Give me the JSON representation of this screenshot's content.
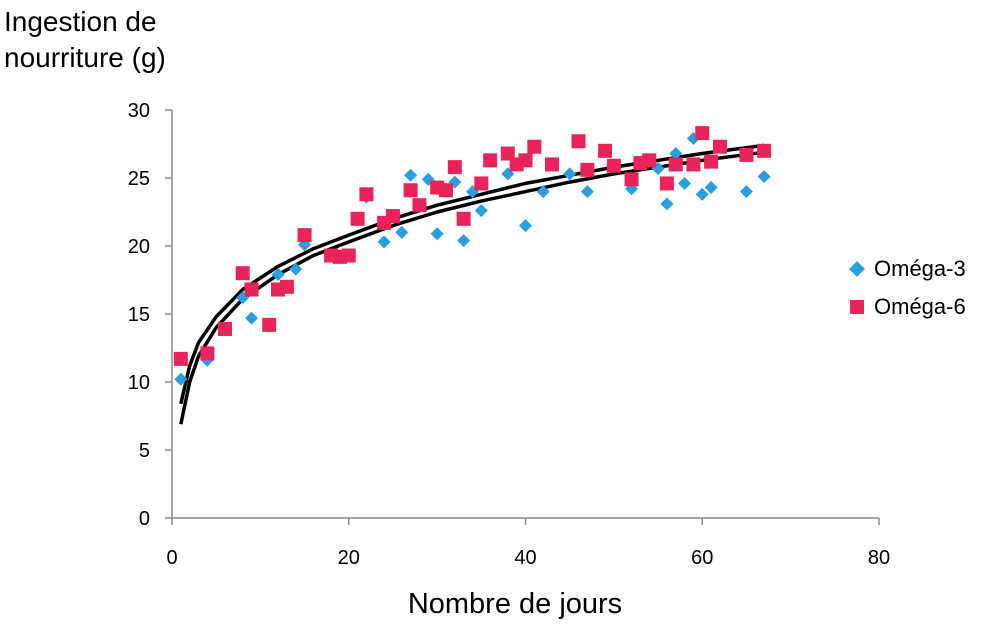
{
  "chart_data": {
    "type": "scatter",
    "title": "",
    "ylabel_lines": [
      "Ingestion de",
      "nourriture (g)"
    ],
    "xlabel": "Nombre de jours",
    "xlim": [
      0,
      80
    ],
    "ylim": [
      0,
      30
    ],
    "x_ticks": [
      0,
      20,
      40,
      60,
      80
    ],
    "y_ticks": [
      0,
      5,
      10,
      15,
      20,
      25,
      30
    ],
    "x_tick_labels": [
      "0",
      "20",
      "40",
      "60",
      "80"
    ],
    "y_tick_labels": [
      "0",
      "5",
      "10",
      "15",
      "20",
      "25",
      "30"
    ],
    "grid": false,
    "legend_position": "right",
    "series": [
      {
        "name": "Oméga-3",
        "marker": "diamond",
        "color": "#2a9fe0",
        "points": [
          [
            1,
            10.2
          ],
          [
            4,
            11.6
          ],
          [
            8,
            16.2
          ],
          [
            9,
            14.7
          ],
          [
            12,
            17.9
          ],
          [
            14,
            18.3
          ],
          [
            15,
            20.1
          ],
          [
            20,
            19.3
          ],
          [
            22,
            23.6
          ],
          [
            24,
            20.3
          ],
          [
            26,
            21.0
          ],
          [
            27,
            25.2
          ],
          [
            29,
            24.9
          ],
          [
            30,
            20.9
          ],
          [
            32,
            24.7
          ],
          [
            33,
            20.4
          ],
          [
            34,
            24.0
          ],
          [
            35,
            22.6
          ],
          [
            38,
            25.3
          ],
          [
            40,
            21.5
          ],
          [
            42,
            24.0
          ],
          [
            45,
            25.3
          ],
          [
            47,
            24.0
          ],
          [
            52,
            24.2
          ],
          [
            55,
            25.7
          ],
          [
            56,
            23.1
          ],
          [
            57,
            26.8
          ],
          [
            58,
            24.6
          ],
          [
            59,
            27.9
          ],
          [
            60,
            23.8
          ],
          [
            61,
            24.3
          ],
          [
            65,
            24.0
          ],
          [
            67,
            25.1
          ]
        ],
        "trend": [
          [
            1,
            6.9
          ],
          [
            2,
            10.0
          ],
          [
            3,
            11.9
          ],
          [
            5,
            14.0
          ],
          [
            8,
            16.1
          ],
          [
            12,
            17.9
          ],
          [
            16,
            19.3
          ],
          [
            20,
            20.3
          ],
          [
            25,
            21.5
          ],
          [
            30,
            22.5
          ],
          [
            35,
            23.3
          ],
          [
            40,
            24.0
          ],
          [
            45,
            24.7
          ],
          [
            50,
            25.3
          ],
          [
            55,
            25.8
          ],
          [
            60,
            26.3
          ],
          [
            67,
            26.9
          ]
        ]
      },
      {
        "name": "Oméga-6",
        "marker": "square",
        "color": "#e8245a",
        "points": [
          [
            1,
            11.7
          ],
          [
            4,
            12.1
          ],
          [
            6,
            13.9
          ],
          [
            8,
            18.0
          ],
          [
            9,
            16.8
          ],
          [
            11,
            14.2
          ],
          [
            12,
            16.8
          ],
          [
            13,
            17.0
          ],
          [
            15,
            20.8
          ],
          [
            18,
            19.3
          ],
          [
            19,
            19.2
          ],
          [
            20,
            19.3
          ],
          [
            21,
            22.0
          ],
          [
            22,
            23.8
          ],
          [
            24,
            21.7
          ],
          [
            25,
            22.2
          ],
          [
            27,
            24.1
          ],
          [
            28,
            23.0
          ],
          [
            30,
            24.3
          ],
          [
            31,
            24.1
          ],
          [
            32,
            25.8
          ],
          [
            33,
            22.0
          ],
          [
            35,
            24.6
          ],
          [
            36,
            26.3
          ],
          [
            38,
            26.8
          ],
          [
            39,
            26.0
          ],
          [
            40,
            26.3
          ],
          [
            41,
            27.3
          ],
          [
            43,
            26.0
          ],
          [
            46,
            27.7
          ],
          [
            47,
            25.6
          ],
          [
            49,
            27.0
          ],
          [
            50,
            25.9
          ],
          [
            52,
            24.9
          ],
          [
            53,
            26.1
          ],
          [
            54,
            26.3
          ],
          [
            56,
            24.6
          ],
          [
            57,
            26.0
          ],
          [
            59,
            26.0
          ],
          [
            60,
            28.3
          ],
          [
            61,
            26.2
          ],
          [
            62,
            27.3
          ],
          [
            65,
            26.7
          ],
          [
            67,
            27.0
          ]
        ],
        "trend": [
          [
            1,
            8.4
          ],
          [
            2,
            11.2
          ],
          [
            3,
            12.9
          ],
          [
            5,
            14.8
          ],
          [
            8,
            16.8
          ],
          [
            12,
            18.5
          ],
          [
            16,
            19.8
          ],
          [
            20,
            20.8
          ],
          [
            25,
            22.0
          ],
          [
            30,
            23.0
          ],
          [
            35,
            23.8
          ],
          [
            40,
            24.6
          ],
          [
            45,
            25.2
          ],
          [
            50,
            25.8
          ],
          [
            55,
            26.3
          ],
          [
            60,
            26.8
          ],
          [
            67,
            27.4
          ]
        ]
      }
    ]
  }
}
